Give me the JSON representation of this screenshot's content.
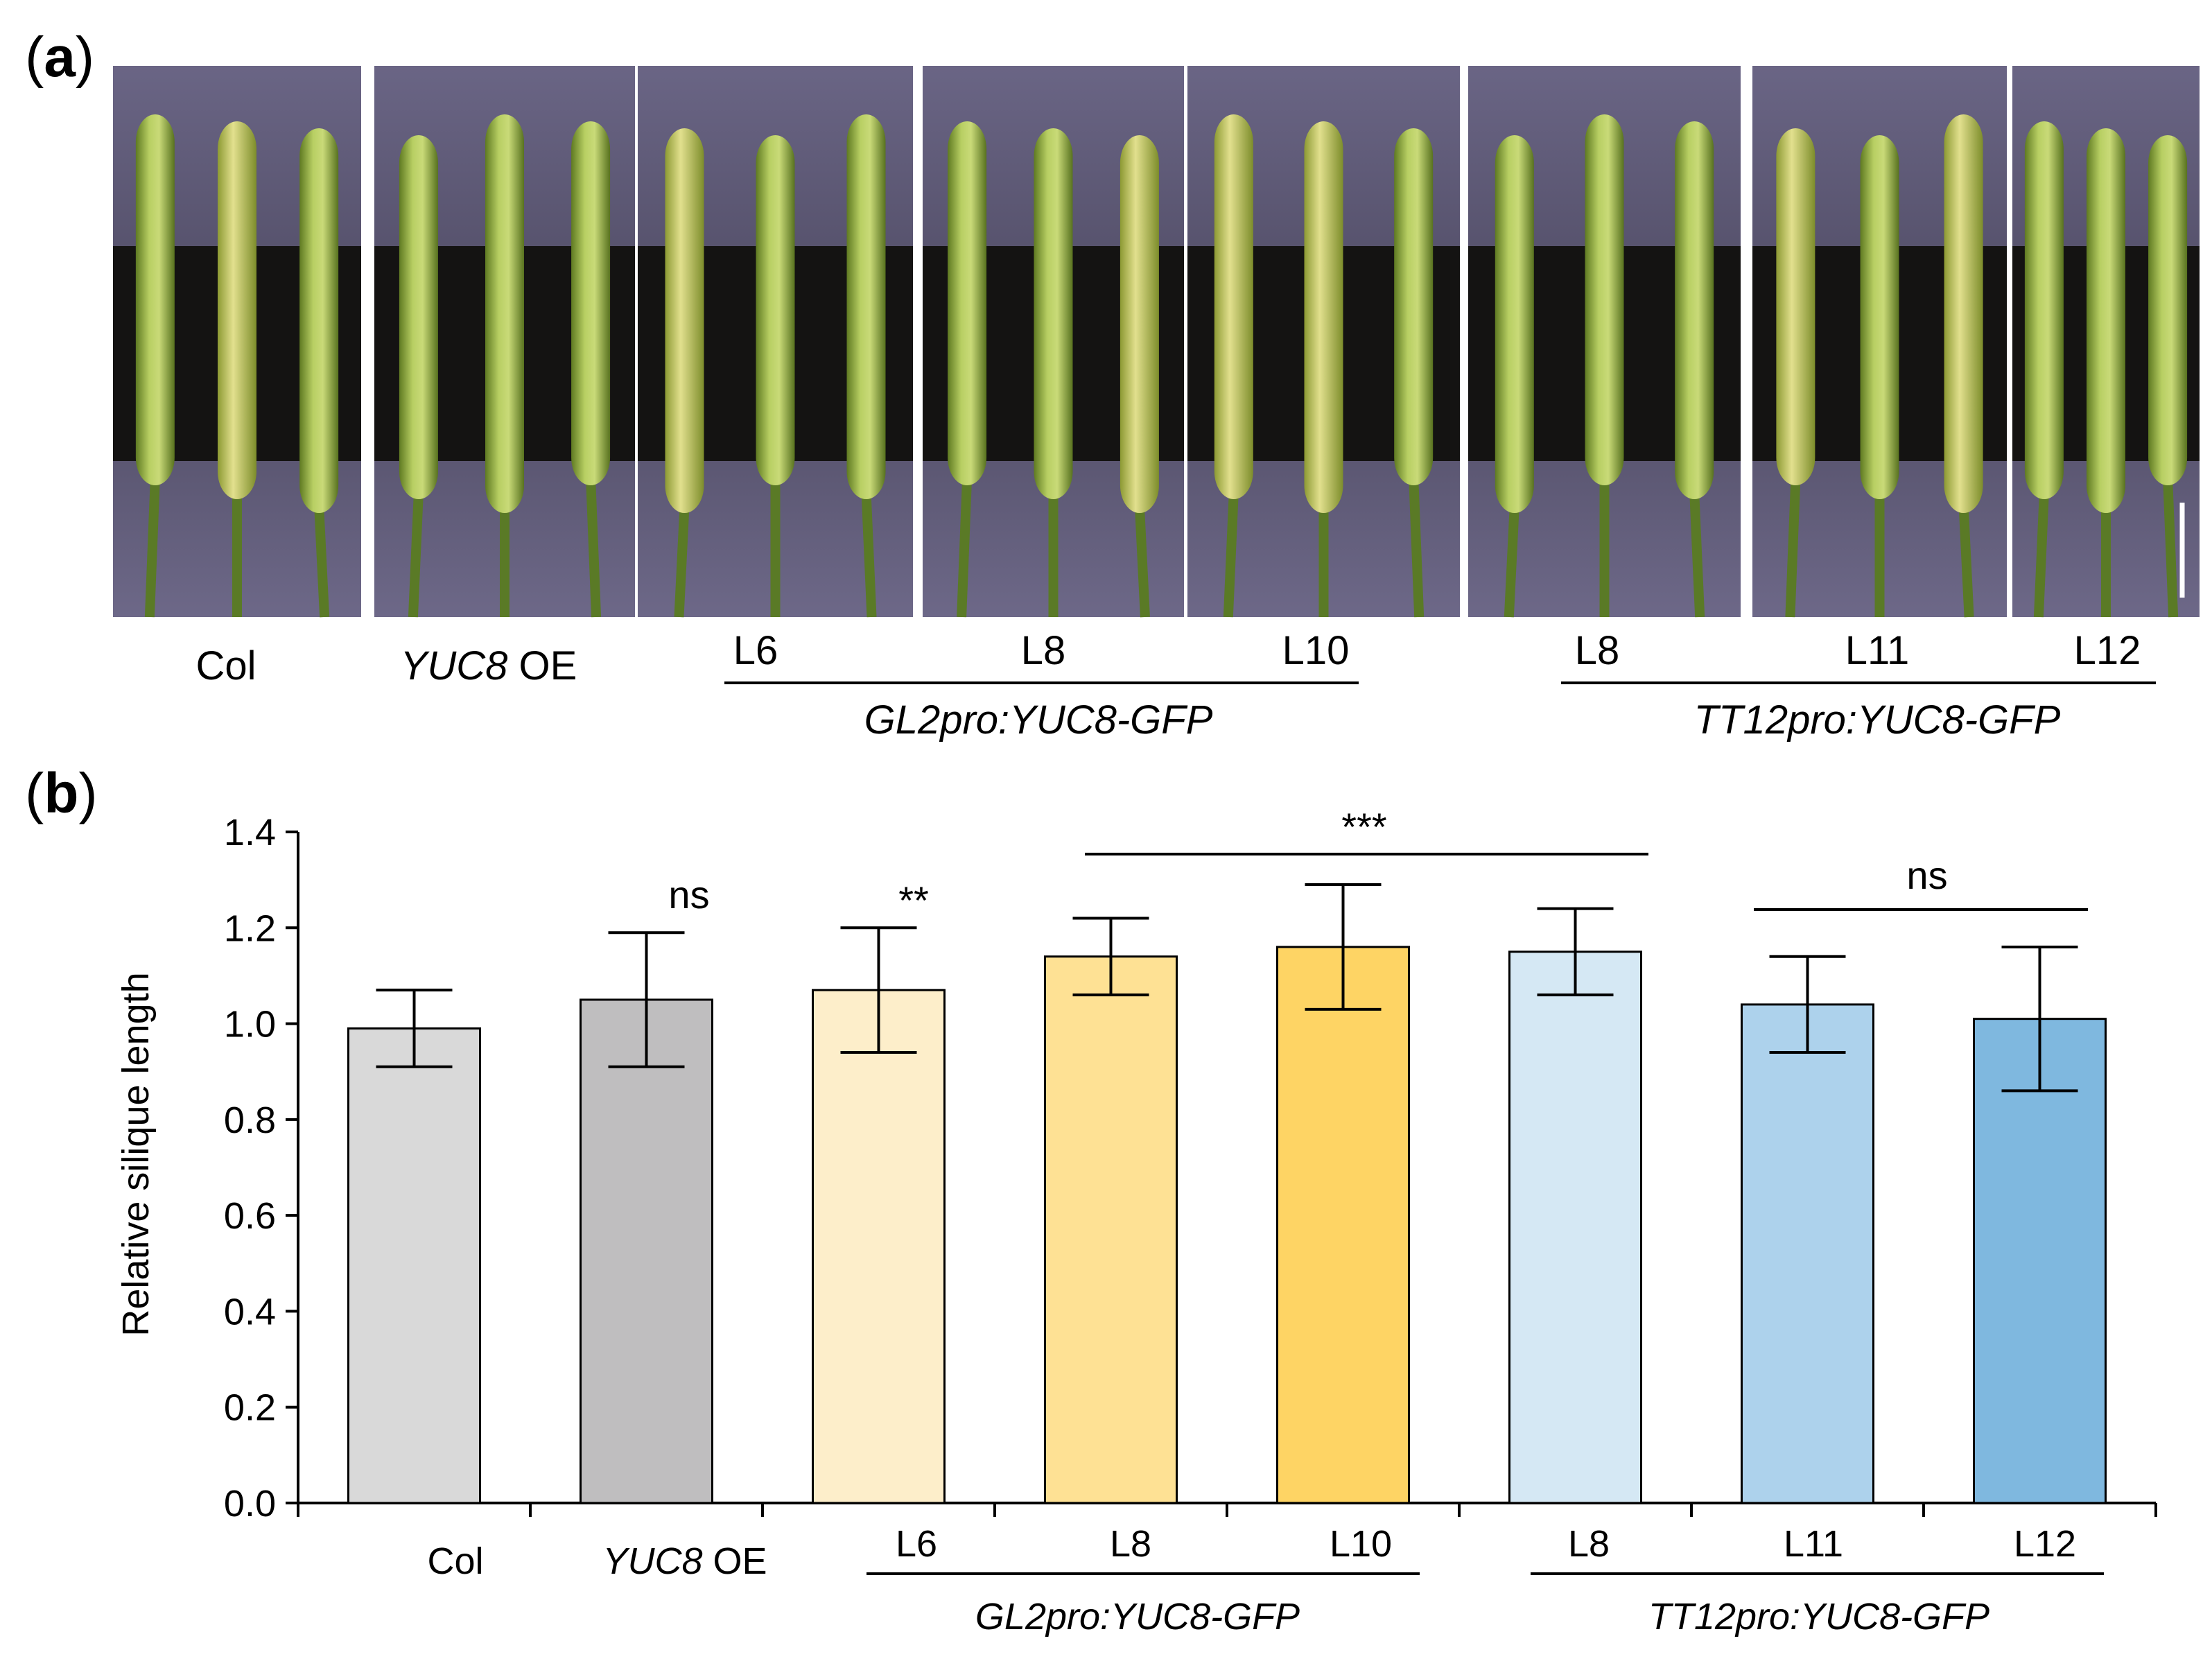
{
  "panel_a": {
    "label": "a",
    "groups": [
      {
        "name": "Col",
        "name_italic": "",
        "name_suffix": ""
      },
      {
        "name": "",
        "name_italic": "YUC8",
        "name_suffix": " OE"
      },
      {
        "name": "L6"
      },
      {
        "name": "L8"
      },
      {
        "name": "L10"
      },
      {
        "name": "L8"
      },
      {
        "name": "L11"
      },
      {
        "name": "L12"
      }
    ],
    "construct_labels": [
      "GL2pro:YUC8-GFP",
      "TT12pro:YUC8-GFP"
    ],
    "colors": {
      "background": "#5b5570",
      "dark_band": "#141312",
      "silique": "#9cb84a"
    }
  },
  "chart_data": {
    "type": "bar",
    "panel_label": "b",
    "categories": [
      "Col",
      "YUC8 OE",
      "L6",
      "L8",
      "L10",
      "L8",
      "L11",
      "L12"
    ],
    "values": [
      0.99,
      1.05,
      1.07,
      1.14,
      1.16,
      1.15,
      1.04,
      1.01
    ],
    "errors": [
      0.08,
      0.14,
      0.13,
      0.08,
      0.13,
      0.09,
      0.1,
      0.15
    ],
    "colors": [
      "#d9d9d9",
      "#bfbebf",
      "#fdeeca",
      "#fee194",
      "#fed464",
      "#d5e8f4",
      "#add2ec",
      "#7fb8df"
    ],
    "ylabel": "Relative silique length",
    "ylim": [
      0,
      1.4
    ],
    "yticks": [
      "0.0",
      "0.2",
      "0.4",
      "0.6",
      "0.8",
      "1.0",
      "1.2",
      "1.4"
    ],
    "group_labels": [
      "GL2pro:YUC8-GFP",
      "TT12pro:YUC8-GFP"
    ],
    "annotations": [
      {
        "text": "ns",
        "target": "YUC8 OE"
      },
      {
        "text": "**",
        "target": "L6"
      },
      {
        "text": "***",
        "target": "L8 (GL2) – L8 (TT12)"
      },
      {
        "text": "ns",
        "target": "L11 – L12"
      }
    ],
    "grid": false
  }
}
